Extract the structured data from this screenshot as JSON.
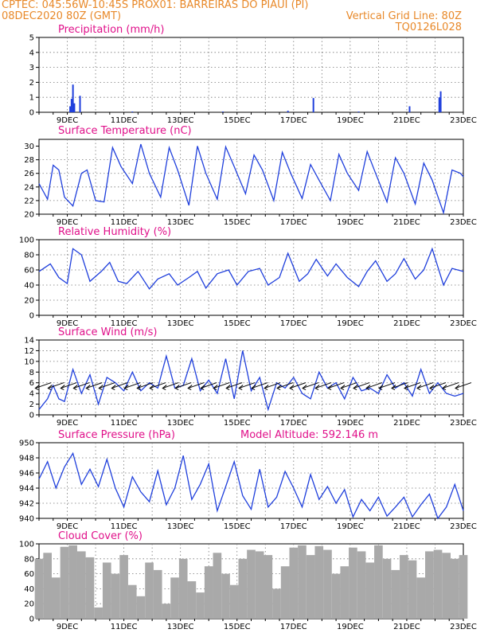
{
  "header": {
    "line1_left": "CPTEC:   045:56W-10:45S   PROX01: BARREIRAS DO PIAUI (PI)",
    "line2_left": "08DEC2020 80Z (GMT)",
    "line2_right": "Vertical Grid Line: 80Z",
    "line3_right": "TQ0126L028",
    "text_color": "#e8892a"
  },
  "colors": {
    "title": "#e0108a",
    "line": "#1f3fdc",
    "bar": "#1f3fdc",
    "cloud": "#a9a9a9",
    "wind_arrow": "#000000"
  },
  "x_axis": {
    "tick_labels": [
      "9DEC",
      "11DEC",
      "13DEC",
      "15DEC",
      "17DEC",
      "19DEC",
      "21DEC",
      "23DEC"
    ],
    "tick_day_values": [
      9,
      11,
      13,
      15,
      17,
      19,
      21,
      23
    ],
    "range_days": [
      8,
      23
    ]
  },
  "chart_data": [
    {
      "type": "bar",
      "title": "Precipitation (mm/h)",
      "ylim": [
        0,
        5
      ],
      "yticks": [
        "0",
        "1",
        "2",
        "3",
        "4",
        "5"
      ],
      "x": [
        9.1,
        9.15,
        9.2,
        9.25,
        9.45,
        11.3,
        14.5,
        16.8,
        17.7,
        19.3,
        21.1,
        22.15,
        22.2
      ],
      "values": [
        0.4,
        0.9,
        1.85,
        0.6,
        1.1,
        0.05,
        0.05,
        0.1,
        0.95,
        0.05,
        0.4,
        1.0,
        1.4
      ]
    },
    {
      "type": "line",
      "title": "Surface Temperature (nC)",
      "ylim": [
        20,
        31
      ],
      "yticks": [
        "20",
        "22",
        "24",
        "26",
        "28",
        "30"
      ],
      "x": [
        8,
        8.3,
        8.5,
        8.7,
        8.9,
        9.2,
        9.5,
        9.7,
        10,
        10.3,
        10.6,
        10.9,
        11.3,
        11.6,
        11.9,
        12.3,
        12.6,
        12.9,
        13.3,
        13.6,
        13.9,
        14.3,
        14.6,
        14.9,
        15.3,
        15.6,
        15.9,
        16.3,
        16.6,
        16.9,
        17.3,
        17.6,
        17.9,
        18.3,
        18.6,
        18.9,
        19.3,
        19.6,
        19.9,
        20.3,
        20.6,
        20.9,
        21.3,
        21.6,
        21.9,
        22.3,
        22.6,
        22.9,
        23
      ],
      "y": [
        24.5,
        22.2,
        27.2,
        26.5,
        22.5,
        21.2,
        26,
        26.5,
        22,
        21.8,
        29.8,
        27,
        24.5,
        30.3,
        26,
        22.5,
        29.8,
        26.5,
        21.3,
        30,
        26,
        22.2,
        29.9,
        27,
        23,
        28.7,
        26.5,
        22,
        29.1,
        26,
        22.3,
        27.3,
        25,
        22,
        28.8,
        26,
        23.5,
        29.2,
        26,
        21.8,
        28.3,
        26,
        21.5,
        27.5,
        25,
        20.2,
        26.5,
        26,
        25.5
      ]
    },
    {
      "type": "line",
      "title": "Relative Humidity (%)",
      "ylim": [
        0,
        100
      ],
      "yticks": [
        "0",
        "20",
        "40",
        "60",
        "80",
        "100"
      ],
      "x": [
        8,
        8.4,
        8.7,
        9,
        9.2,
        9.5,
        9.8,
        10.2,
        10.5,
        10.8,
        11.1,
        11.5,
        11.9,
        12.2,
        12.6,
        12.9,
        13.3,
        13.6,
        13.9,
        14.3,
        14.7,
        15,
        15.4,
        15.8,
        16.1,
        16.5,
        16.8,
        17.2,
        17.5,
        17.8,
        18.2,
        18.5,
        18.9,
        19.3,
        19.6,
        19.9,
        20.3,
        20.6,
        20.9,
        21.3,
        21.6,
        21.9,
        22.3,
        22.6,
        23
      ],
      "y": [
        58,
        68,
        50,
        42,
        88,
        80,
        45,
        58,
        70,
        45,
        42,
        58,
        35,
        48,
        55,
        40,
        50,
        58,
        36,
        55,
        60,
        40,
        58,
        62,
        40,
        50,
        82,
        45,
        55,
        74,
        52,
        68,
        50,
        38,
        58,
        72,
        45,
        55,
        75,
        48,
        60,
        88,
        40,
        62,
        58
      ]
    },
    {
      "type": "line",
      "title": "Surface Wind (m/s)",
      "ylim": [
        0,
        14
      ],
      "yticks": [
        "0",
        "2",
        "4",
        "6",
        "8",
        "10",
        "12",
        "14"
      ],
      "x": [
        8,
        8.3,
        8.5,
        8.7,
        8.9,
        9.2,
        9.5,
        9.8,
        10.1,
        10.4,
        10.7,
        11,
        11.3,
        11.6,
        11.9,
        12.2,
        12.5,
        12.8,
        13.1,
        13.4,
        13.7,
        14,
        14.3,
        14.6,
        14.9,
        15.2,
        15.5,
        15.8,
        16.1,
        16.4,
        16.7,
        17,
        17.3,
        17.6,
        17.9,
        18.2,
        18.5,
        18.8,
        19.1,
        19.4,
        19.7,
        20,
        20.3,
        20.6,
        20.9,
        21.2,
        21.5,
        21.8,
        22.1,
        22.4,
        22.7,
        23
      ],
      "y": [
        1,
        3,
        5.5,
        3,
        2.5,
        8.5,
        4,
        7.5,
        2,
        7,
        6,
        4.5,
        8,
        4.5,
        6,
        5,
        11,
        5,
        5.5,
        10.5,
        4.5,
        6.5,
        4,
        10.5,
        3,
        12,
        4.5,
        7,
        1,
        6,
        5,
        7,
        4,
        3,
        8,
        5,
        6,
        3,
        7,
        4.5,
        5,
        4,
        7.5,
        5,
        6,
        3.5,
        8.5,
        4,
        6,
        4,
        3.5,
        4
      ]
    },
    {
      "type": "line",
      "title": "Surface Pressure (hPa)",
      "subtitle": "Model Altitude: 592.146 m",
      "ylim": [
        940,
        950
      ],
      "yticks": [
        "940",
        "942",
        "944",
        "946",
        "948",
        "950"
      ],
      "x": [
        8,
        8.3,
        8.6,
        8.9,
        9.2,
        9.5,
        9.8,
        10.1,
        10.4,
        10.7,
        11,
        11.3,
        11.6,
        11.9,
        12.2,
        12.5,
        12.8,
        13.1,
        13.4,
        13.7,
        14,
        14.3,
        14.6,
        14.9,
        15.2,
        15.5,
        15.8,
        16.1,
        16.4,
        16.7,
        17,
        17.3,
        17.6,
        17.9,
        18.2,
        18.5,
        18.8,
        19.1,
        19.4,
        19.7,
        20,
        20.3,
        20.6,
        20.9,
        21.2,
        21.5,
        21.8,
        22.1,
        22.4,
        22.7,
        23
      ],
      "y": [
        945.2,
        947.5,
        944,
        946.8,
        948.6,
        944.5,
        946.5,
        944.2,
        947.8,
        944,
        941.5,
        945.5,
        943.5,
        942.2,
        946.3,
        941.8,
        944,
        948.3,
        942.5,
        944.5,
        947.2,
        941,
        944.2,
        947.5,
        943,
        941.2,
        946.5,
        941.5,
        942.8,
        946.2,
        944,
        941.5,
        945.8,
        942.5,
        944.2,
        942,
        943.8,
        940.2,
        942.5,
        941,
        942.8,
        940.3,
        941.5,
        942.8,
        940.2,
        941.8,
        943.2,
        940,
        941.5,
        944.5,
        941
      ]
    },
    {
      "type": "bar",
      "title": "Cloud Cover (%)",
      "ylim": [
        0,
        100
      ],
      "yticks": [
        "0",
        "20",
        "40",
        "60",
        "80",
        "100"
      ],
      "x": [
        8,
        8.3,
        8.6,
        8.9,
        9.2,
        9.5,
        9.8,
        10.1,
        10.4,
        10.7,
        11,
        11.3,
        11.6,
        11.9,
        12.2,
        12.5,
        12.8,
        13.1,
        13.4,
        13.7,
        14,
        14.3,
        14.6,
        14.9,
        15.2,
        15.5,
        15.8,
        16.1,
        16.4,
        16.7,
        17,
        17.3,
        17.6,
        17.9,
        18.2,
        18.5,
        18.8,
        19.1,
        19.4,
        19.7,
        20,
        20.3,
        20.6,
        20.9,
        21.2,
        21.5,
        21.8,
        22.1,
        22.4,
        22.7,
        23
      ],
      "values": [
        80,
        88,
        55,
        96,
        98,
        90,
        82,
        15,
        75,
        60,
        85,
        45,
        30,
        75,
        65,
        20,
        55,
        80,
        50,
        35,
        70,
        88,
        60,
        45,
        80,
        92,
        90,
        85,
        40,
        70,
        95,
        98,
        85,
        97,
        92,
        60,
        70,
        95,
        90,
        75,
        98,
        80,
        65,
        85,
        78,
        55,
        90,
        92,
        88,
        80,
        85
      ]
    }
  ]
}
